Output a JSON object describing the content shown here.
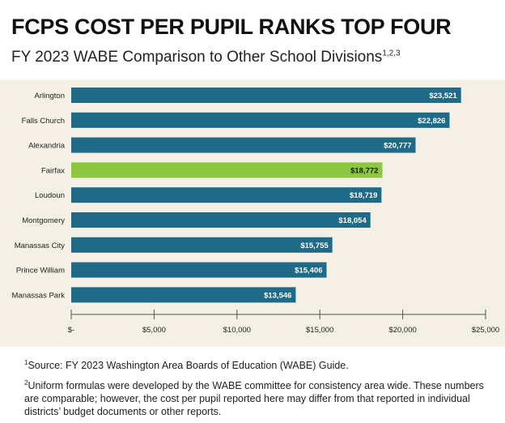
{
  "header": {
    "title": "FCPS COST PER PUPIL RANKS TOP FOUR",
    "subtitle": "FY 2023 WABE Comparison to Other School Divisions",
    "subtitle_sup": "1,2,3"
  },
  "chart_data": {
    "type": "bar",
    "orientation": "horizontal",
    "categories": [
      "Arlington",
      "Falls Church",
      "Alexandria",
      "Fairfax",
      "Loudoun",
      "Montgomery",
      "Manassas City",
      "Prince William",
      "Manassas Park"
    ],
    "values": [
      23521,
      22826,
      20777,
      18772,
      18719,
      18054,
      15755,
      15406,
      13546
    ],
    "value_labels": [
      "$23,521",
      "$22,826",
      "$20,777",
      "$18,772",
      "$18,719",
      "$18,054",
      "$15,755",
      "$15,406",
      "$13,546"
    ],
    "highlight": "Fairfax",
    "xlim": [
      0,
      25000
    ],
    "xticks": [
      0,
      5000,
      10000,
      15000,
      20000,
      25000
    ],
    "xtick_labels": [
      "$-",
      "$5,000",
      "$10,000",
      "$15,000",
      "$20,000",
      "$25,000"
    ],
    "colors": {
      "default": "#1f6b87",
      "highlight": "#8dc63f",
      "label": "#ffffff",
      "background": "#f5f0e6"
    },
    "grid": false
  },
  "footnotes": [
    {
      "sup": "1",
      "text": "Source: FY 2023 Washington Area Boards of Education (WABE) Guide."
    },
    {
      "sup": "2",
      "text": "Uniform formulas were developed by the WABE committee for consistency area wide. These numbers are comparable; however, the cost per pupil reported here may differ from that reported in individual districts’ budget documents or other reports."
    }
  ]
}
